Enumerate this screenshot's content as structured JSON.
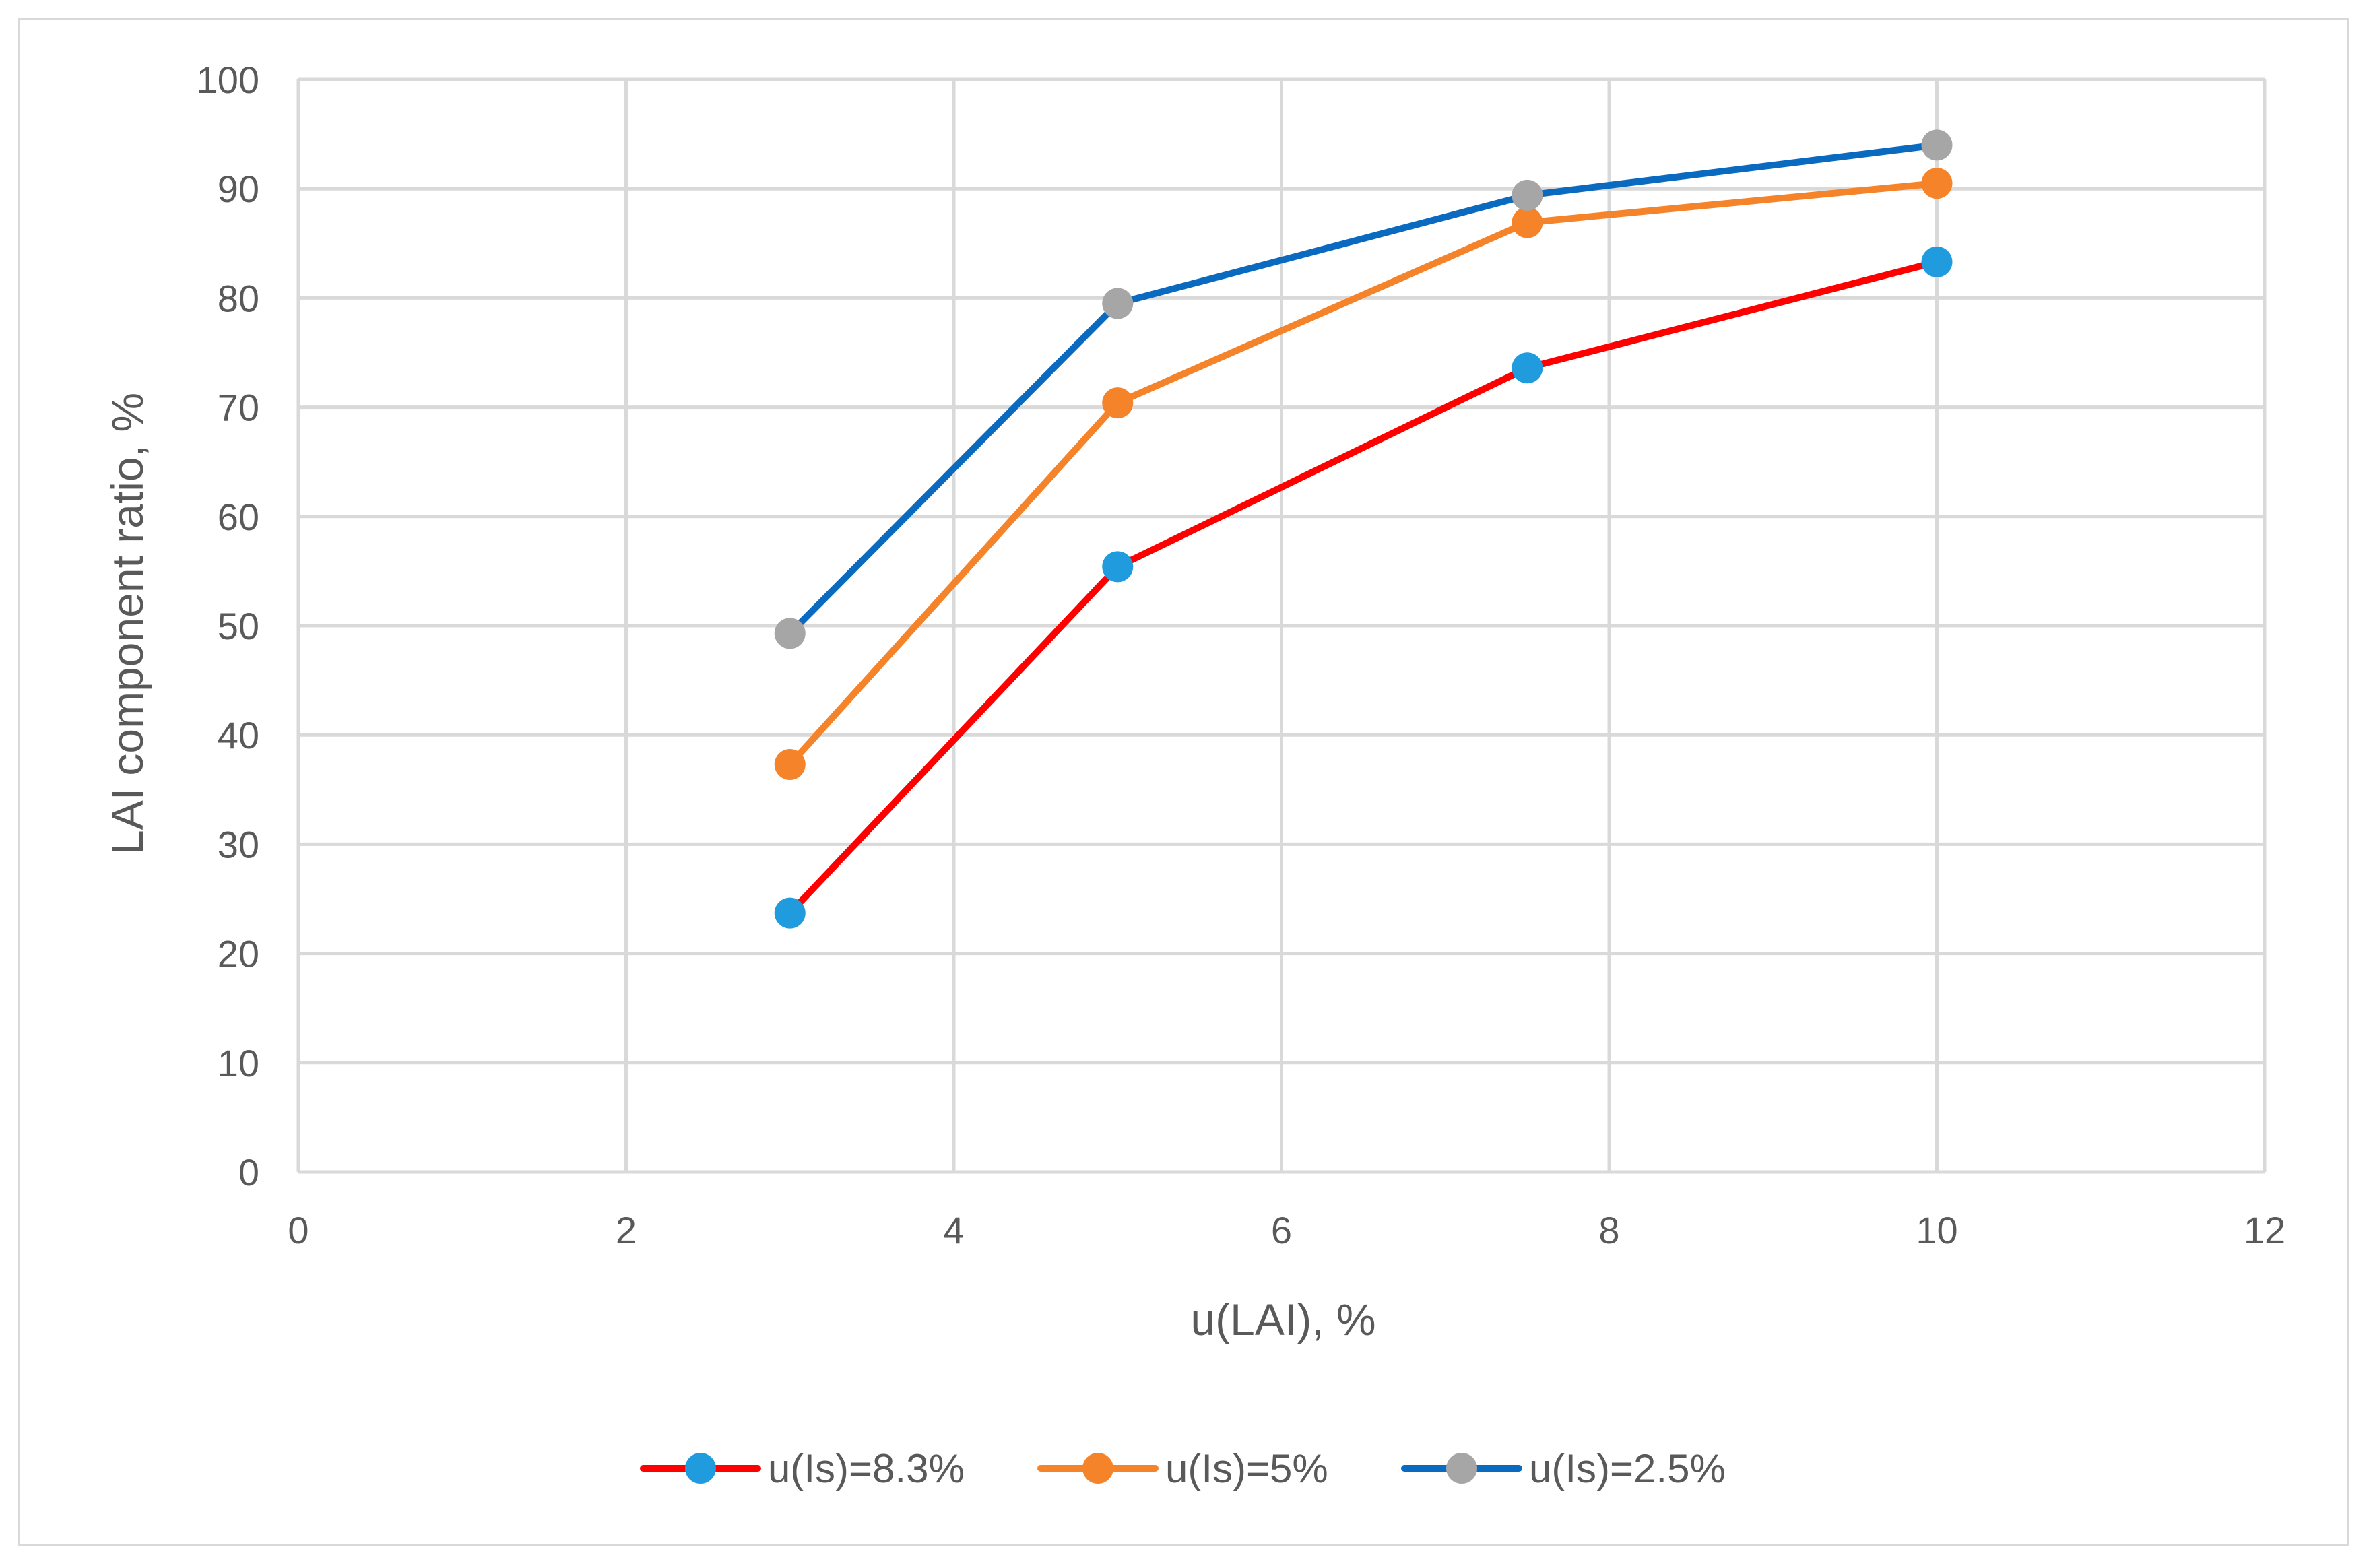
{
  "chart_data": {
    "type": "line",
    "title": "",
    "xlabel": "u(LAI), %",
    "ylabel": "LAI component ratio, %",
    "xlim": [
      0,
      12
    ],
    "ylim": [
      0,
      100
    ],
    "x_ticks": [
      0,
      2,
      4,
      6,
      8,
      10,
      12
    ],
    "y_ticks": [
      0,
      10,
      20,
      30,
      40,
      50,
      60,
      70,
      80,
      90,
      100
    ],
    "grid": true,
    "legend_position": "bottom",
    "x": [
      3,
      5,
      7.5,
      10
    ],
    "series": [
      {
        "name": "u(Is)=8.3%",
        "values": [
          23.7,
          55.4,
          73.6,
          83.3
        ],
        "line_color": "#ff0000",
        "marker_color": "#1f9bde"
      },
      {
        "name": "u(Is)=5%",
        "values": [
          37.3,
          70.4,
          86.9,
          90.5
        ],
        "line_color": "#f5832a",
        "marker_color": "#f5832a"
      },
      {
        "name": "u(Is)=2.5%",
        "values": [
          49.3,
          79.5,
          89.4,
          94.0
        ],
        "line_color": "#0a6abf",
        "marker_color": "#a6a6a6"
      }
    ],
    "colors": {
      "grid": "#d9d9d9",
      "axis_text": "#595959",
      "frame": "#d9d9d9"
    }
  }
}
